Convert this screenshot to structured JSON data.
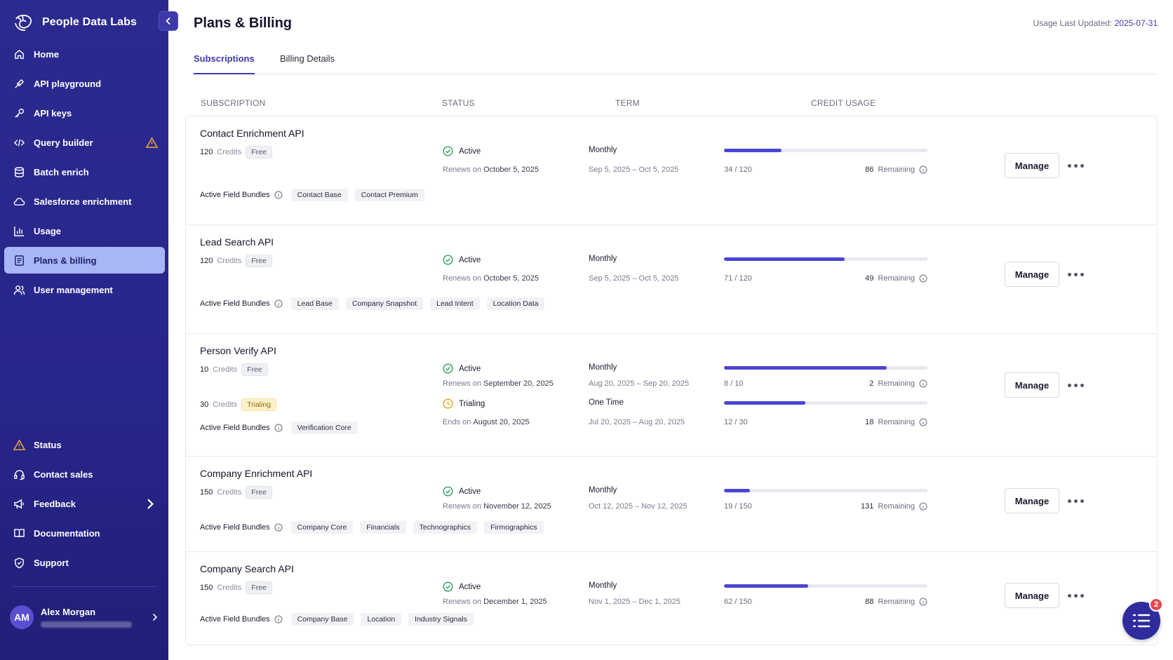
{
  "app": {
    "brand_name": "People Data Labs"
  },
  "sidebar": {
    "nav": [
      {
        "label": "Home",
        "icon": "home-icon"
      },
      {
        "label": "API playground",
        "icon": "flask-icon"
      },
      {
        "label": "API keys",
        "icon": "key-icon"
      },
      {
        "label": "Query builder",
        "icon": "code-icon",
        "warning": true
      },
      {
        "label": "Batch enrich",
        "icon": "database-icon"
      },
      {
        "label": "Salesforce enrichment",
        "icon": "cloud-icon"
      },
      {
        "label": "Usage",
        "icon": "bar-chart-icon"
      },
      {
        "label": "Plans & billing",
        "icon": "document-icon",
        "active": true
      },
      {
        "label": "User management",
        "icon": "users-icon"
      }
    ],
    "bottom_nav": [
      {
        "label": "Status",
        "icon": "warning-icon"
      },
      {
        "label": "Contact sales",
        "icon": "headset-icon"
      },
      {
        "label": "Feedback",
        "icon": "megaphone-icon"
      },
      {
        "label": "Documentation",
        "icon": "book-icon"
      },
      {
        "label": "Support",
        "icon": "shield-icon"
      }
    ],
    "user": {
      "initials": "AM",
      "name": "Alex Morgan"
    }
  },
  "header": {
    "title": "Plans & Billing",
    "usage_updated_label": "Usage Last Updated:",
    "usage_updated_date": "2025-07-31"
  },
  "tabs": [
    {
      "label": "Subscriptions",
      "active": true
    },
    {
      "label": "Billing Details"
    }
  ],
  "columns": {
    "subscription": "SUBSCRIPTION",
    "status": "STATUS",
    "term": "TERM",
    "credit_usage": "CREDIT USAGE"
  },
  "labels": {
    "credits": "Credits",
    "active_field_bundles": "Active Field Bundles",
    "remaining": "Remaining",
    "manage": "Manage"
  },
  "colors": {
    "accent": "#3b3ab0",
    "sidebar_bg": "#2b2a8f",
    "bar_fill": "#4c45d4",
    "active_green": "#2e9e5b",
    "trial_amber": "#e0a31c"
  },
  "subscriptions": [
    {
      "name": "Contact Enrichment API",
      "plans": [
        {
          "credits": "120",
          "badge": "Free",
          "status": "Active",
          "date_label": "Renews on",
          "date": "October 5, 2025",
          "term": "Monthly",
          "period": "Sep 5, 2025 – Oct 5, 2025",
          "used": "34 / 120",
          "remaining": "86",
          "fraction": 0.283
        }
      ],
      "bundles": [
        "Contact Base",
        "Contact Premium"
      ]
    },
    {
      "name": "Lead Search API",
      "plans": [
        {
          "credits": "120",
          "badge": "Free",
          "status": "Active",
          "date_label": "Renews on",
          "date": "October 5, 2025",
          "term": "Monthly",
          "period": "Sep 5, 2025 – Oct 5, 2025",
          "used": "71 / 120",
          "remaining": "49",
          "fraction": 0.592
        }
      ],
      "bundles": [
        "Lead Base",
        "Company Snapshot",
        "Lead Intent",
        "Location Data"
      ]
    },
    {
      "name": "Person Verify API",
      "plans": [
        {
          "credits": "10",
          "badge": "Free",
          "status": "Active",
          "date_label": "Renews on",
          "date": "September 20, 2025",
          "term": "Monthly",
          "period": "Aug 20, 2025 – Sep 20, 2025",
          "used": "8 / 10",
          "remaining": "2",
          "fraction": 0.8
        },
        {
          "credits": "30",
          "badge": "Trialing",
          "status": "Trialing",
          "date_label": "Ends on",
          "date": "August 20, 2025",
          "term": "One Time",
          "period": "Jul 20, 2025 – Aug 20, 2025",
          "used": "12 / 30",
          "remaining": "18",
          "fraction": 0.4
        }
      ],
      "bundles": [
        "Verification Core"
      ]
    },
    {
      "name": "Company Enrichment API",
      "plans": [
        {
          "credits": "150",
          "badge": "Free",
          "status": "Active",
          "date_label": "Renews on",
          "date": "November 12, 2025",
          "term": "Monthly",
          "period": "Oct 12, 2025 – Nov 12, 2025",
          "used": "19 / 150",
          "remaining": "131",
          "fraction": 0.127
        }
      ],
      "bundles": [
        "Company Core",
        "Financials",
        "Technographics",
        "Firmographics"
      ]
    },
    {
      "name": "Company Search API",
      "plans": [
        {
          "credits": "150",
          "badge": "Free",
          "status": "Active",
          "date_label": "Renews on",
          "date": "December 1, 2025",
          "term": "Monthly",
          "period": "Nov 1, 2025 – Dec 1, 2025",
          "used": "62 / 150",
          "remaining": "88",
          "fraction": 0.413
        }
      ],
      "bundles": [
        "Company Base",
        "Location",
        "Industry Signals"
      ]
    }
  ],
  "fab": {
    "badge_count": "2",
    "icon": "checklist-icon"
  }
}
